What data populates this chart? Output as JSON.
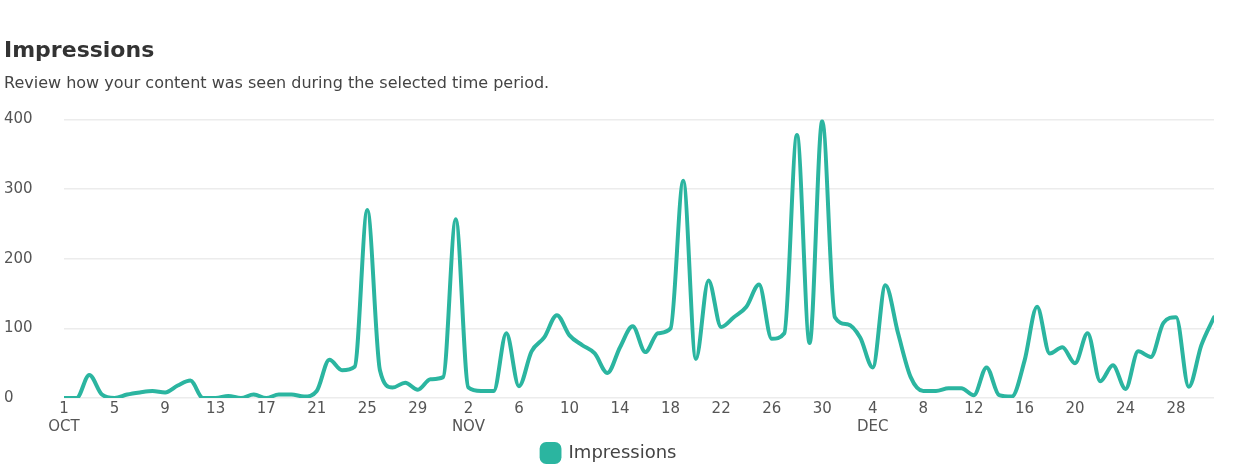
{
  "chart_data": {
    "type": "line",
    "title": "Impressions",
    "subtitle": "Review how your content was seen during the selected time period.",
    "x": [
      "--10-01",
      "--10-02",
      "--10-03",
      "--10-04",
      "--10-05",
      "--10-06",
      "--10-07",
      "--10-08",
      "--10-09",
      "--10-10",
      "--10-11",
      "--10-12",
      "--10-13",
      "--10-14",
      "--10-15",
      "--10-16",
      "--10-17",
      "--10-18",
      "--10-19",
      "--10-20",
      "--10-21",
      "--10-22",
      "--10-23",
      "--10-24",
      "--10-25",
      "--10-26",
      "--10-27",
      "--10-28",
      "--10-29",
      "--10-30",
      "--10-31",
      "--11-01",
      "--11-02",
      "--11-03",
      "--11-04",
      "--11-05",
      "--11-06",
      "--11-07",
      "--11-08",
      "--11-09",
      "--11-10",
      "--11-11",
      "--11-12",
      "--11-13",
      "--11-14",
      "--11-15",
      "--11-16",
      "--11-17",
      "--11-18",
      "--11-19",
      "--11-20",
      "--11-21",
      "--11-22",
      "--11-23",
      "--11-24",
      "--11-25",
      "--11-26",
      "--11-27",
      "--11-28",
      "--11-29",
      "--11-30",
      "--12-01",
      "--12-02",
      "--12-03",
      "--12-04",
      "--12-05",
      "--12-06",
      "--12-07",
      "--12-08",
      "--12-09",
      "--12-10",
      "--12-11",
      "--12-12",
      "--12-13",
      "--12-14",
      "--12-15",
      "--12-16",
      "--12-17",
      "--12-18",
      "--12-19",
      "--12-20",
      "--12-21",
      "--12-22",
      "--12-23",
      "--12-24",
      "--12-25",
      "--12-26",
      "--12-27",
      "--12-28",
      "--12-29",
      "--12-30",
      "--12-31"
    ],
    "series": [
      {
        "name": "Impressions",
        "color": "#2bb5a0",
        "values": [
          0,
          0,
          33,
          5,
          0,
          5,
          8,
          10,
          8,
          18,
          25,
          0,
          0,
          3,
          0,
          5,
          0,
          5,
          5,
          2,
          10,
          55,
          40,
          45,
          270,
          40,
          15,
          22,
          12,
          27,
          30,
          257,
          15,
          10,
          10,
          93,
          17,
          67,
          87,
          119,
          90,
          76,
          64,
          36,
          73,
          103,
          66,
          93,
          100,
          312,
          56,
          169,
          102,
          116,
          131,
          163,
          85,
          93,
          378,
          79,
          398,
          116,
          106,
          87,
          44,
          162,
          93,
          30,
          10,
          10,
          14,
          14,
          4,
          44,
          4,
          2,
          53,
          131,
          64,
          73,
          50,
          93,
          24,
          47,
          13,
          67,
          59,
          108,
          116,
          16,
          76,
          116
        ]
      }
    ],
    "xlim": [
      "--10-01",
      "--12-31"
    ],
    "xticks": [
      {
        "value": "--10-01",
        "label": "1\nOCT"
      },
      {
        "value": "--10-05",
        "label": "5"
      },
      {
        "value": "--10-09",
        "label": "9"
      },
      {
        "value": "--10-13",
        "label": "13"
      },
      {
        "value": "--10-17",
        "label": "17"
      },
      {
        "value": "--10-21",
        "label": "21"
      },
      {
        "value": "--10-25",
        "label": "25"
      },
      {
        "value": "--10-29",
        "label": "29"
      },
      {
        "value": "--11-02",
        "label": "2\nNOV"
      },
      {
        "value": "--11-06",
        "label": "6"
      },
      {
        "value": "--11-10",
        "label": "10"
      },
      {
        "value": "--11-14",
        "label": "14"
      },
      {
        "value": "--11-18",
        "label": "18"
      },
      {
        "value": "--11-22",
        "label": "22"
      },
      {
        "value": "--11-26",
        "label": "26"
      },
      {
        "value": "--11-30",
        "label": "30"
      },
      {
        "value": "--12-04",
        "label": "4\nDEC"
      },
      {
        "value": "--12-08",
        "label": "8"
      },
      {
        "value": "--12-12",
        "label": "12"
      },
      {
        "value": "--12-16",
        "label": "16"
      },
      {
        "value": "--12-20",
        "label": "20"
      },
      {
        "value": "--12-24",
        "label": "24"
      },
      {
        "value": "--12-28",
        "label": "28"
      }
    ],
    "ylim": [
      0,
      400
    ],
    "yticks": [
      0,
      100,
      200,
      300,
      400
    ],
    "grid": "y",
    "legend": "bottom",
    "marker": "none",
    "line_style": "solid"
  }
}
